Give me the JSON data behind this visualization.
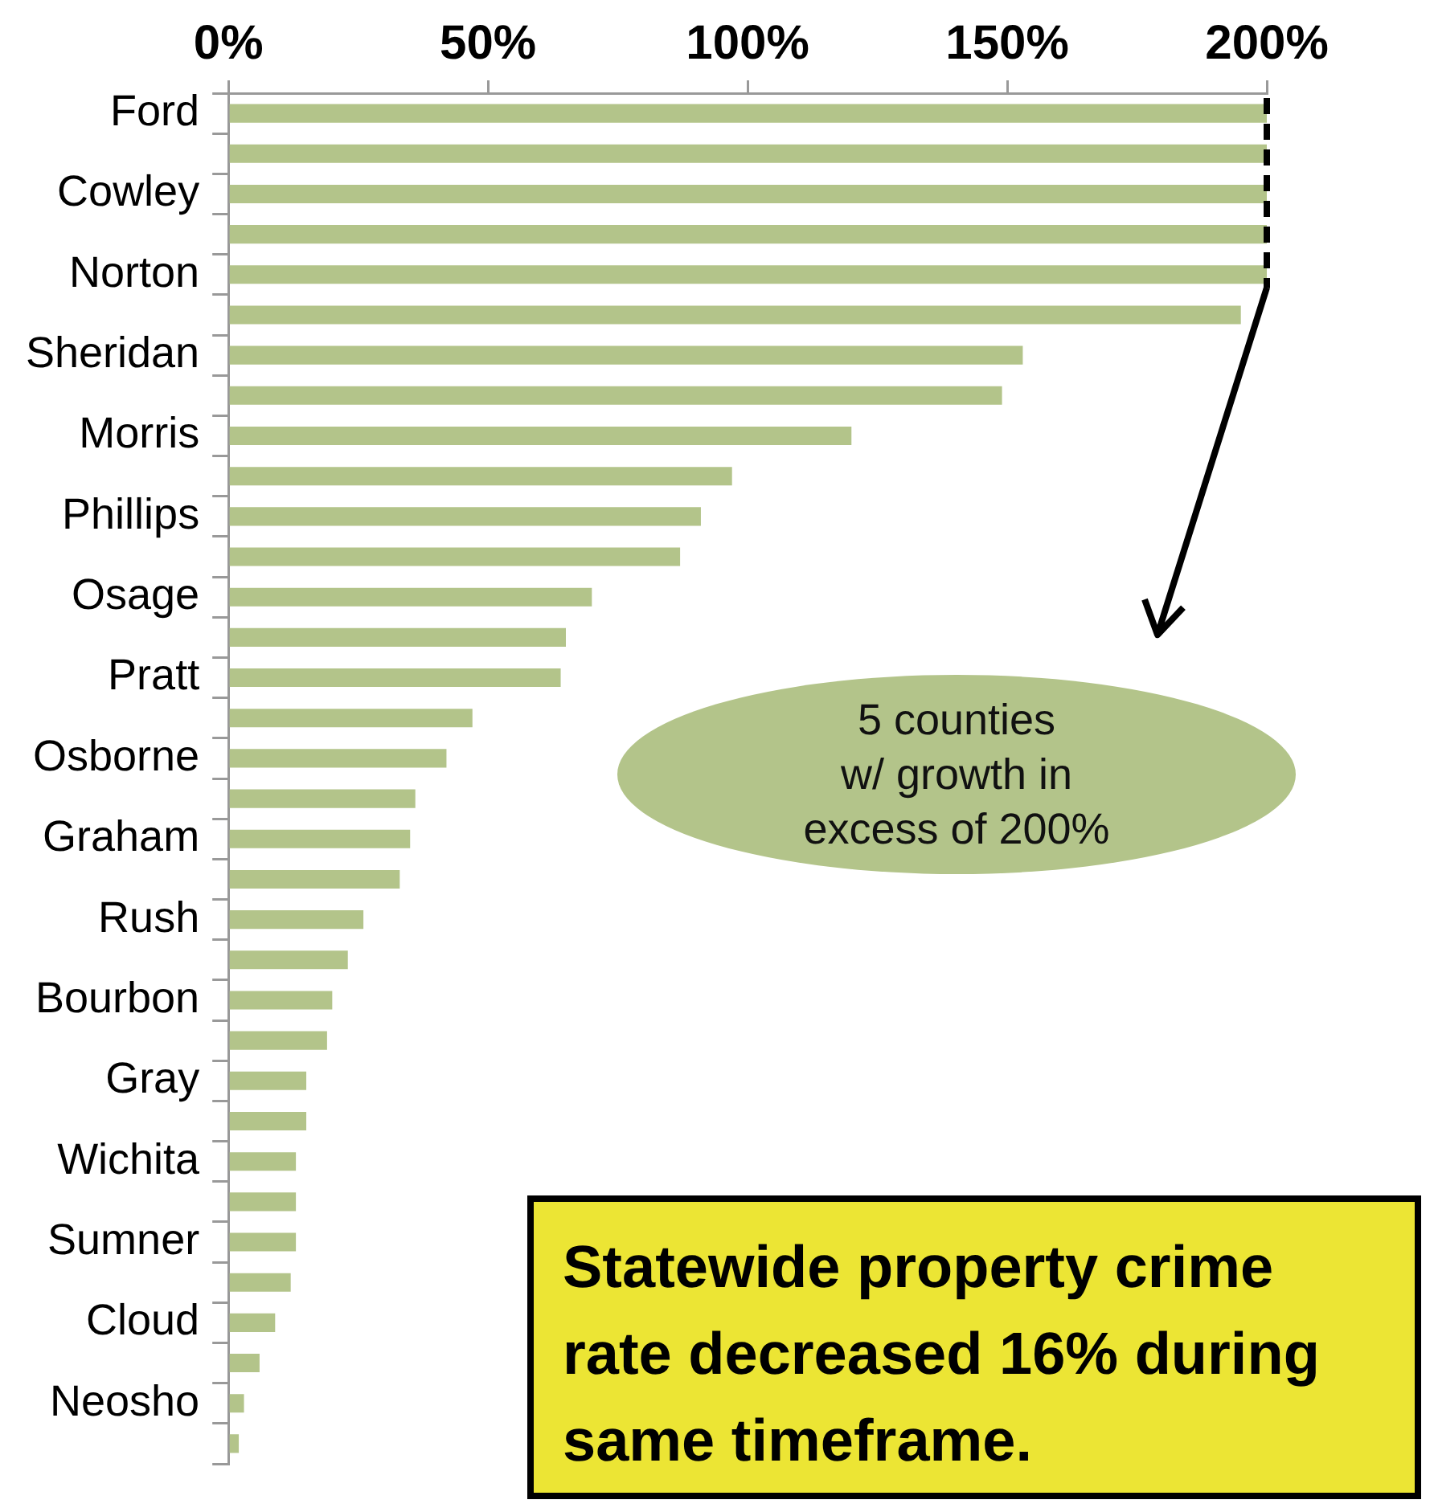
{
  "chart_data": {
    "type": "bar",
    "orientation": "horizontal",
    "categories": [
      "Ford",
      null,
      "Cowley",
      null,
      "Norton",
      null,
      "Sheridan",
      null,
      "Morris",
      null,
      "Phillips",
      null,
      "Osage",
      null,
      "Pratt",
      null,
      "Osborne",
      null,
      "Graham",
      null,
      "Rush",
      null,
      "Bourbon",
      null,
      "Gray",
      null,
      "Wichita",
      null,
      "Sumner",
      null,
      "Cloud",
      null,
      "Neosho",
      null
    ],
    "values": [
      200,
      200,
      200,
      200,
      200,
      195,
      153,
      149,
      120,
      97,
      91,
      87,
      70,
      65,
      64,
      47,
      42,
      36,
      35,
      33,
      26,
      23,
      20,
      19,
      15,
      15,
      13,
      13,
      13,
      12,
      9,
      6,
      3,
      2
    ],
    "color": "#b3c48a",
    "xlim": [
      0,
      200
    ],
    "xticks": [
      {
        "value": 0,
        "label": "0%"
      },
      {
        "value": 50,
        "label": "50%"
      },
      {
        "value": 100,
        "label": "100%"
      },
      {
        "value": 150,
        "label": "150%"
      },
      {
        "value": 200,
        "label": "200%"
      }
    ],
    "grid": false,
    "legend": false,
    "annotations": [
      "5 counties w/ growth in excess of 200%",
      "Statewide property crime rate decreased 16% during same timeframe."
    ]
  }
}
